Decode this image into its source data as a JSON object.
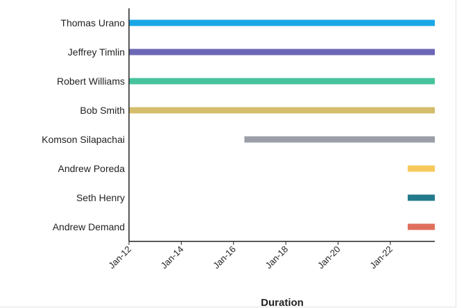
{
  "chart_data": {
    "type": "bar",
    "orientation": "horizontal",
    "xlabel": "Duration",
    "ylabel": "",
    "x_axis": "date",
    "xlim": [
      "2012-01-01",
      "2023-09-15"
    ],
    "x_ticks": [
      {
        "label": "Jan-12",
        "date": "2012-01-01"
      },
      {
        "label": "Jan-14",
        "date": "2014-01-01"
      },
      {
        "label": "Jan-16",
        "date": "2016-01-01"
      },
      {
        "label": "Jan-18",
        "date": "2018-01-01"
      },
      {
        "label": "Jan-20",
        "date": "2020-01-01"
      },
      {
        "label": "Jan-22",
        "date": "2022-01-01"
      }
    ],
    "grid": false,
    "bars": [
      {
        "name": "Thomas Urano",
        "start": "2012-01-01",
        "end": "2023-09-15",
        "color": "#19a7e6"
      },
      {
        "name": "Jeffrey Timlin",
        "start": "2012-01-01",
        "end": "2023-09-15",
        "color": "#6c68b5"
      },
      {
        "name": "Robert Williams",
        "start": "2012-01-01",
        "end": "2023-09-15",
        "color": "#45c39c"
      },
      {
        "name": "Bob Smith",
        "start": "2012-01-01",
        "end": "2023-09-15",
        "color": "#d4bd6c"
      },
      {
        "name": "Komson Silapachai",
        "start": "2016-06-01",
        "end": "2023-09-15",
        "color": "#9b9ea6"
      },
      {
        "name": "Andrew Poreda",
        "start": "2022-09-01",
        "end": "2023-09-15",
        "color": "#f7c95b"
      },
      {
        "name": "Seth Henry",
        "start": "2022-09-01",
        "end": "2023-09-15",
        "color": "#237a8c"
      },
      {
        "name": "Andrew Demand",
        "start": "2022-09-01",
        "end": "2023-09-15",
        "color": "#e06f5c"
      }
    ]
  }
}
